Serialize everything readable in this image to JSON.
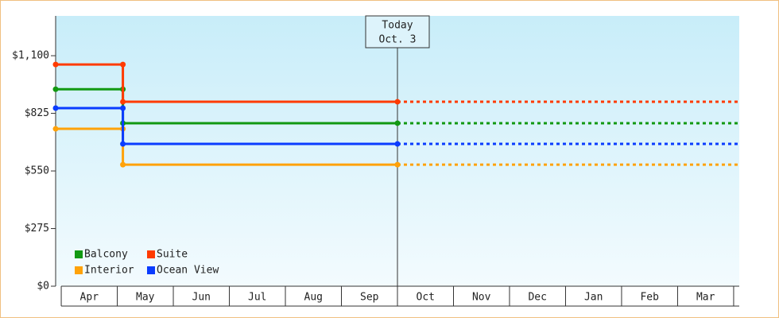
{
  "chart_data": {
    "type": "step-line",
    "categories": [
      "Apr",
      "May",
      "Jun",
      "Jul",
      "Aug",
      "Sep",
      "Oct",
      "Nov",
      "Dec",
      "Jan",
      "Feb",
      "Mar"
    ],
    "x": [
      -0.1,
      1.1,
      1.1,
      6.0,
      12.1
    ],
    "xlim": [
      -0.1,
      12.1
    ],
    "xticks": [
      0,
      1,
      2,
      3,
      4,
      5,
      6,
      7,
      8,
      9,
      10,
      11,
      12
    ],
    "ylim": [
      0,
      1290
    ],
    "yticks": [
      {
        "value": 0,
        "label": "$0"
      },
      {
        "value": 275,
        "label": "$275"
      },
      {
        "value": 550,
        "label": "$550"
      },
      {
        "value": 825,
        "label": "$825"
      },
      {
        "value": 1100,
        "label": "$1,100"
      }
    ],
    "series": [
      {
        "name": "Balcony",
        "color": "#129912",
        "values": [
          940,
          940,
          778,
          778,
          778
        ]
      },
      {
        "name": "Suite",
        "color": "#ff3b00",
        "values": [
          1058,
          1058,
          880,
          880,
          880
        ]
      },
      {
        "name": "Interior",
        "color": "#ffa20a",
        "values": [
          751,
          751,
          580,
          580,
          580
        ]
      },
      {
        "name": "Ocean View",
        "color": "#0a3cff",
        "values": [
          850,
          850,
          679,
          679,
          679
        ]
      }
    ],
    "annotation": {
      "x": 6.0,
      "lines": [
        "Today",
        "Oct. 3"
      ]
    },
    "legend": "bottom-left"
  }
}
